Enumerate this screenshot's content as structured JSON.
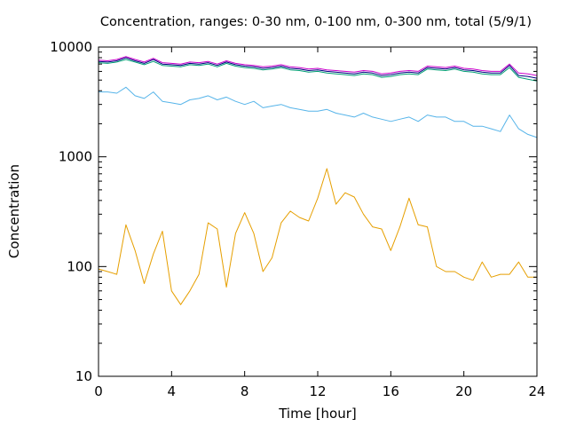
{
  "chart_data": {
    "type": "line",
    "title": "Concentration, ranges: 0-30 nm, 0-100 nm, 0-300 nm, total (5/9/1)",
    "xlabel": "Time [hour]",
    "ylabel": "Concentration",
    "xlim": [
      0,
      24
    ],
    "ylim": [
      10,
      10000
    ],
    "yscale": "log",
    "grid": false,
    "x_ticks": [
      "0",
      "4",
      "8",
      "12",
      "16",
      "20",
      "24"
    ],
    "y_ticks": [
      "10",
      "100",
      "1000",
      "10000"
    ],
    "x": [
      0,
      0.5,
      1,
      1.5,
      2,
      2.5,
      3,
      3.5,
      4,
      4.5,
      5,
      5.5,
      6,
      6.5,
      7,
      7.5,
      8,
      8.5,
      9,
      9.5,
      10,
      10.5,
      11,
      11.5,
      12,
      12.5,
      13,
      13.5,
      14,
      14.5,
      15,
      15.5,
      16,
      16.5,
      17,
      17.5,
      18,
      18.5,
      19,
      19.5,
      20,
      20.5,
      21,
      21.5,
      22,
      22.5,
      23,
      23.5,
      24
    ],
    "series": [
      {
        "color": "#cc00cc",
        "values": [
          7600,
          7500,
          7700,
          8200,
          7700,
          7300,
          7900,
          7200,
          7100,
          7000,
          7300,
          7200,
          7400,
          7000,
          7500,
          7100,
          6900,
          6800,
          6600,
          6700,
          6900,
          6600,
          6500,
          6300,
          6400,
          6200,
          6100,
          6000,
          5900,
          6100,
          6000,
          5700,
          5800,
          6000,
          6100,
          6000,
          6700,
          6600,
          6500,
          6700,
          6400,
          6300,
          6100,
          6000,
          6000,
          7000,
          5800,
          5700,
          5500
        ]
      },
      {
        "color": "#000080",
        "values": [
          7400,
          7300,
          7500,
          8000,
          7500,
          7100,
          7700,
          7000,
          6900,
          6800,
          7100,
          7000,
          7200,
          6800,
          7300,
          6900,
          6700,
          6600,
          6400,
          6500,
          6700,
          6400,
          6300,
          6100,
          6200,
          6000,
          5900,
          5800,
          5700,
          5900,
          5800,
          5500,
          5600,
          5800,
          5900,
          5800,
          6500,
          6400,
          6300,
          6500,
          6200,
          6100,
          5900,
          5800,
          5800,
          6800,
          5500,
          5400,
          5200
        ]
      },
      {
        "color": "#009e73",
        "values": [
          7200,
          7100,
          7300,
          7700,
          7300,
          6900,
          7400,
          6800,
          6700,
          6600,
          6900,
          6800,
          7000,
          6600,
          7100,
          6700,
          6500,
          6400,
          6200,
          6300,
          6500,
          6200,
          6100,
          5900,
          6000,
          5800,
          5700,
          5600,
          5500,
          5700,
          5600,
          5300,
          5400,
          5600,
          5700,
          5600,
          6300,
          6200,
          6100,
          6300,
          6000,
          5900,
          5700,
          5600,
          5600,
          6500,
          5300,
          5100,
          4900
        ]
      },
      {
        "color": "#56b4e9",
        "values": [
          3900,
          3900,
          3800,
          4300,
          3600,
          3400,
          3900,
          3200,
          3100,
          3000,
          3300,
          3400,
          3600,
          3300,
          3500,
          3200,
          3000,
          3200,
          2800,
          2900,
          3000,
          2800,
          2700,
          2600,
          2600,
          2700,
          2500,
          2400,
          2300,
          2500,
          2300,
          2200,
          2100,
          2200,
          2300,
          2100,
          2400,
          2300,
          2300,
          2100,
          2100,
          1900,
          1900,
          1800,
          1700,
          2400,
          1800,
          1600,
          1500
        ]
      },
      {
        "color": "#e69f00",
        "values": [
          95,
          90,
          85,
          240,
          140,
          70,
          130,
          210,
          60,
          45,
          60,
          85,
          250,
          220,
          65,
          200,
          310,
          200,
          90,
          120,
          250,
          320,
          280,
          260,
          420,
          780,
          370,
          470,
          430,
          300,
          230,
          220,
          140,
          230,
          420,
          240,
          230,
          100,
          90,
          90,
          80,
          75,
          110,
          80,
          85,
          85,
          110,
          80,
          80
        ]
      }
    ]
  }
}
